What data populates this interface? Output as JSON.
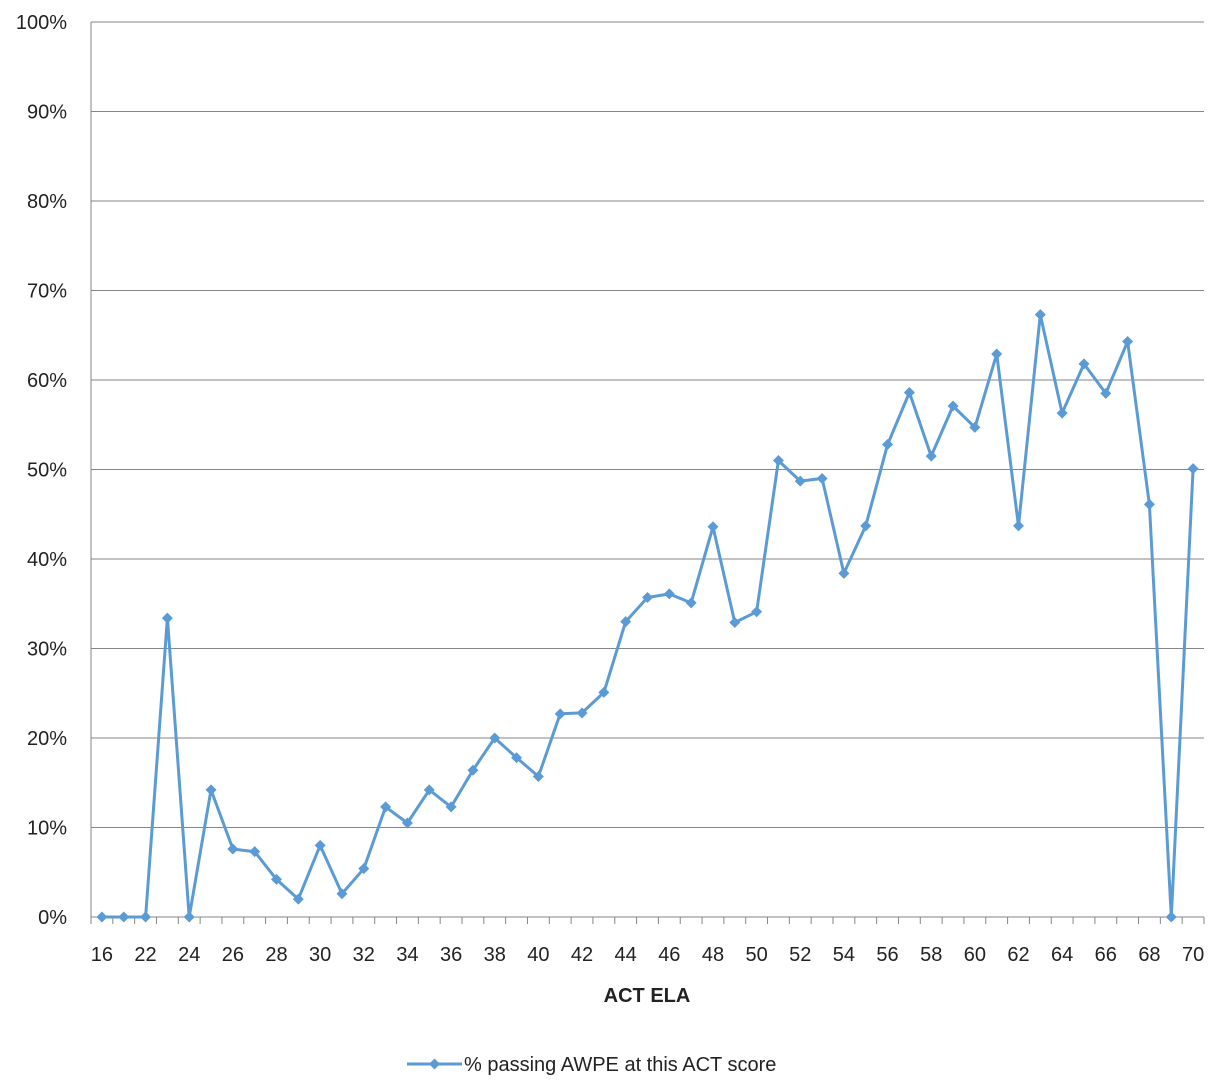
{
  "chart_data": {
    "type": "line",
    "xlabel": "ACT ELA",
    "ylabel": "",
    "ylim": [
      0,
      1
    ],
    "y_ticks": [
      "0%",
      "10%",
      "20%",
      "30%",
      "40%",
      "50%",
      "60%",
      "70%",
      "80%",
      "90%",
      "100%"
    ],
    "x_ticks": [
      "16",
      "22",
      "24",
      "26",
      "28",
      "30",
      "32",
      "34",
      "36",
      "38",
      "40",
      "42",
      "44",
      "46",
      "48",
      "50",
      "52",
      "54",
      "56",
      "58",
      "60",
      "62",
      "64",
      "66",
      "68",
      "70"
    ],
    "grid": "horizontal",
    "legend_position": "bottom",
    "series_color": "#5B9BD5",
    "categories": [
      "16",
      "21",
      "22",
      "23",
      "24",
      "25",
      "26",
      "27",
      "28",
      "29",
      "30",
      "31",
      "32",
      "33",
      "34",
      "35",
      "36",
      "37",
      "38",
      "39",
      "40",
      "41",
      "42",
      "43",
      "44",
      "45",
      "46",
      "47",
      "48",
      "49",
      "50",
      "51",
      "52",
      "53",
      "54",
      "55",
      "56",
      "57",
      "58",
      "59",
      "60",
      "61",
      "62",
      "63",
      "64",
      "65",
      "66",
      "67",
      "68",
      "69",
      "70"
    ],
    "series": [
      {
        "name": "% passing AWPE at this ACT score",
        "values": [
          0.0,
          0.0,
          0.0,
          0.334,
          0.0,
          0.142,
          0.076,
          0.073,
          0.042,
          0.02,
          0.08,
          0.026,
          0.054,
          0.123,
          0.105,
          0.142,
          0.123,
          0.164,
          0.2,
          0.178,
          0.157,
          0.227,
          0.228,
          0.251,
          0.33,
          0.357,
          0.361,
          0.351,
          0.436,
          0.329,
          0.341,
          0.51,
          0.487,
          0.49,
          0.384,
          0.437,
          0.528,
          0.586,
          0.515,
          0.571,
          0.547,
          0.629,
          0.437,
          0.673,
          0.563,
          0.618,
          0.585,
          0.643,
          0.461,
          0.0,
          0.501
        ]
      }
    ]
  }
}
